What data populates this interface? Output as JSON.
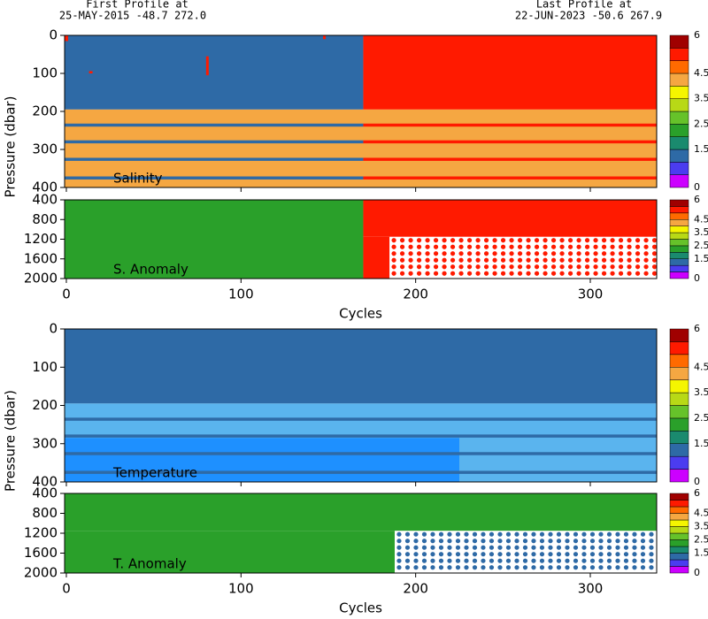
{
  "header": {
    "first_label": "First Profile at",
    "first_info": "25-MAY-2015   -48.7 272.0",
    "last_label": "Last Profile at",
    "last_info": "22-JUN-2023   -50.6 267.9"
  },
  "colorbar": {
    "levels": [
      0,
      0.5,
      1,
      1.5,
      2,
      2.5,
      3,
      3.5,
      4,
      4.5,
      5,
      5.5,
      6
    ],
    "colors": [
      "#cc00ff",
      "#4b3cf0",
      "#2e6aa6",
      "#1a8a6e",
      "#2aa02a",
      "#66c22a",
      "#b8d916",
      "#f5f500",
      "#f5a742",
      "#ff6a00",
      "#ff1a00",
      "#a00000"
    ],
    "ticks": [
      0,
      1.5,
      2.5,
      3.5,
      4.5,
      6
    ]
  },
  "chart_data": [
    {
      "type": "heatmap",
      "label": "Salinity",
      "ylabel": "Pressure (dbar)",
      "xlim": [
        -1,
        338
      ],
      "xticks": [
        0,
        100,
        200,
        300
      ],
      "ylim": [
        400,
        0
      ],
      "yticks": [
        0,
        100,
        200,
        300,
        400
      ],
      "cells": [
        {
          "x": [
            -1,
            170
          ],
          "y": [
            0,
            195
          ],
          "value": 1.2
        },
        {
          "x": [
            170,
            338
          ],
          "y": [
            0,
            195
          ],
          "value": 5.2
        },
        {
          "x": [
            -1,
            338
          ],
          "y": [
            195,
            400
          ],
          "value": 4.2
        },
        {
          "x": [
            -1,
            170
          ],
          "y": [
            232,
            240
          ],
          "value": 1.2
        },
        {
          "x": [
            170,
            338
          ],
          "y": [
            232,
            240
          ],
          "value": 5.2
        },
        {
          "x": [
            -1,
            170
          ],
          "y": [
            276,
            284
          ],
          "value": 1.2
        },
        {
          "x": [
            170,
            338
          ],
          "y": [
            276,
            284
          ],
          "value": 5.2
        },
        {
          "x": [
            -1,
            170
          ],
          "y": [
            322,
            330
          ],
          "value": 1.2
        },
        {
          "x": [
            170,
            338
          ],
          "y": [
            322,
            330
          ],
          "value": 5.2
        },
        {
          "x": [
            -1,
            170
          ],
          "y": [
            371,
            379
          ],
          "value": 1.2
        },
        {
          "x": [
            170,
            338
          ],
          "y": [
            371,
            379
          ],
          "value": 5.2
        },
        {
          "x": [
            80,
            81.5
          ],
          "y": [
            55,
            105
          ],
          "value": 5.2
        },
        {
          "x": [
            147,
            148.5
          ],
          "y": [
            0,
            10
          ],
          "value": 5.2
        },
        {
          "x": [
            -1,
            1
          ],
          "y": [
            0,
            15
          ],
          "value": 5.2
        },
        {
          "x": [
            13,
            15
          ],
          "y": [
            94,
            100
          ],
          "value": 5.2
        }
      ],
      "dots": []
    },
    {
      "type": "heatmap",
      "label": "S. Anomaly",
      "xlabel": "Cycles",
      "xlim": [
        -1,
        338
      ],
      "xticks": [
        0,
        100,
        200,
        300
      ],
      "ylim": [
        2000,
        400
      ],
      "yticks": [
        400,
        800,
        1200,
        1600,
        2000
      ],
      "cells": [
        {
          "x": [
            -1,
            170
          ],
          "y": [
            400,
            2000
          ],
          "value": 2.2
        },
        {
          "x": [
            170,
            338
          ],
          "y": [
            400,
            1150
          ],
          "value": 5.2
        },
        {
          "x": [
            170,
            185
          ],
          "y": [
            1150,
            2000
          ],
          "value": 5.2
        }
      ],
      "dots": [
        {
          "x": [
            185,
            338
          ],
          "y": [
            1150,
            2000
          ],
          "value": 5.2
        }
      ]
    },
    {
      "type": "heatmap",
      "label": "Temperature",
      "ylabel": "Pressure (dbar)",
      "xlim": [
        -1,
        338
      ],
      "xticks": [
        0,
        100,
        200,
        300
      ],
      "ylim": [
        400,
        0
      ],
      "yticks": [
        0,
        100,
        200,
        300,
        400
      ],
      "cells": [
        {
          "x": [
            -1,
            338
          ],
          "y": [
            0,
            195
          ],
          "value": 1.2
        },
        {
          "x": [
            -1,
            338
          ],
          "y": [
            195,
            400
          ],
          "color": "#5ab4ee"
        },
        {
          "x": [
            -1,
            225
          ],
          "y": [
            285,
            400
          ],
          "color": "#1e90ff"
        },
        {
          "x": [
            -1,
            338
          ],
          "y": [
            232,
            240
          ],
          "value": 1.2
        },
        {
          "x": [
            -1,
            338
          ],
          "y": [
            276,
            284
          ],
          "value": 1.2
        },
        {
          "x": [
            -1,
            338
          ],
          "y": [
            322,
            330
          ],
          "value": 1.2
        },
        {
          "x": [
            -1,
            338
          ],
          "y": [
            371,
            379
          ],
          "value": 1.2
        }
      ],
      "dots": []
    },
    {
      "type": "heatmap",
      "label": "T. Anomaly",
      "xlabel": "Cycles",
      "xlim": [
        -1,
        338
      ],
      "xticks": [
        0,
        100,
        200,
        300
      ],
      "ylim": [
        2000,
        400
      ],
      "yticks": [
        400,
        800,
        1200,
        1600,
        2000
      ],
      "cells": [
        {
          "x": [
            -1,
            338
          ],
          "y": [
            400,
            1150
          ],
          "value": 2.2
        },
        {
          "x": [
            -1,
            188
          ],
          "y": [
            1150,
            2000
          ],
          "value": 2.2
        }
      ],
      "dots": [
        {
          "x": [
            188,
            338
          ],
          "y": [
            1150,
            2000
          ],
          "value": 1.2
        }
      ]
    }
  ]
}
